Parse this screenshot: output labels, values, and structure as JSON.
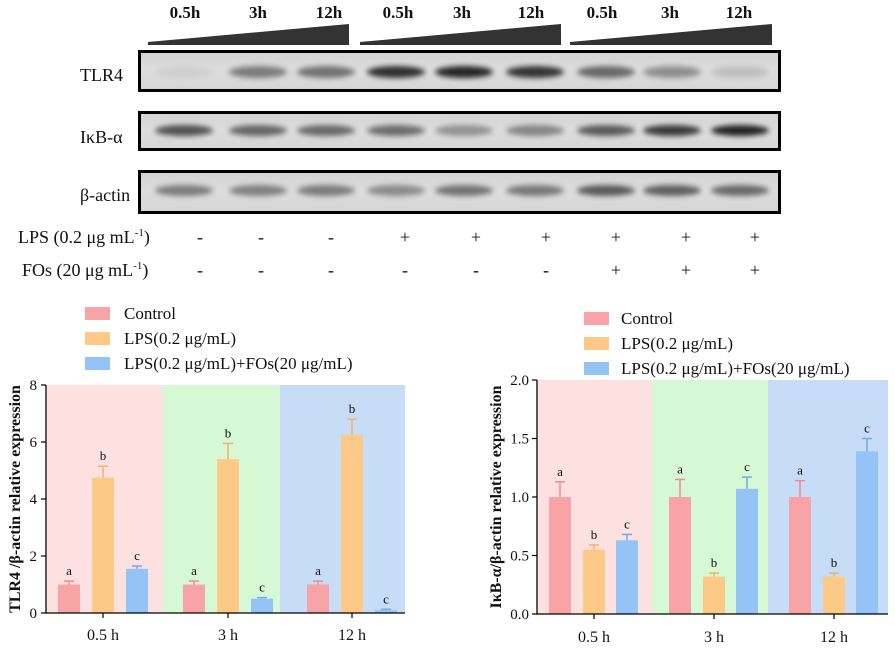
{
  "blot": {
    "time_labels": [
      "0.5h",
      "3h",
      "12h",
      "0.5h",
      "3h",
      "12h",
      "0.5h",
      "3h",
      "12h"
    ],
    "rows": [
      {
        "label": "TLR4",
        "intensity": [
          0.06,
          0.5,
          0.55,
          0.9,
          0.95,
          0.88,
          0.6,
          0.4,
          0.15
        ]
      },
      {
        "label": "IκB-α",
        "intensity": [
          0.72,
          0.62,
          0.6,
          0.58,
          0.38,
          0.45,
          0.68,
          0.85,
          0.97
        ]
      },
      {
        "label": "β-actin",
        "intensity": [
          0.5,
          0.48,
          0.5,
          0.42,
          0.55,
          0.52,
          0.68,
          0.65,
          0.6
        ]
      }
    ],
    "treatments": [
      {
        "label": "LPS (0.2 μg mL",
        "label_sup": "-1",
        "label_end": ")",
        "values": [
          "-",
          "-",
          "-",
          "+",
          "+",
          "+",
          "+",
          "+",
          "+"
        ]
      },
      {
        "label": "FOs (20 μg mL",
        "label_sup": "-1",
        "label_end": ")",
        "values": [
          "-",
          "-",
          "-",
          "-",
          "-",
          "-",
          "+",
          "+",
          "+"
        ]
      }
    ]
  },
  "colors": {
    "series": [
      "#f8a3a6",
      "#fdc987",
      "#93c4f5"
    ],
    "error_bars": [
      "#f08a90",
      "#f5b365",
      "#6faaea"
    ],
    "regions": [
      "#fde1e0",
      "#d7f8d4",
      "#c7dcf6"
    ],
    "band": "#1c1c1c",
    "wedge": "#333333"
  },
  "chart_data": [
    {
      "type": "bar",
      "categories": [
        "0.5 h",
        "3 h",
        "12 h"
      ],
      "xlabel": "",
      "ylabel": "TLR4 /β-actin relative expression",
      "ylim": [
        0,
        8
      ],
      "yticks": [
        0,
        2,
        4,
        6,
        8
      ],
      "ytick_labels": [
        "0",
        "2",
        "4",
        "6",
        "8"
      ],
      "grid": false,
      "legend": "top-left",
      "series": [
        {
          "name": "Control",
          "values": [
            1.0,
            1.0,
            1.0
          ],
          "errors": [
            0.12,
            0.12,
            0.12
          ],
          "letters": [
            "a",
            "a",
            "a"
          ]
        },
        {
          "name": "LPS(0.2 μg/mL)",
          "values": [
            4.75,
            5.4,
            6.25
          ],
          "errors": [
            0.4,
            0.55,
            0.55
          ],
          "letters": [
            "b",
            "b",
            "b"
          ]
        },
        {
          "name": "LPS(0.2 μg/mL)+FOs(20 μg/mL)",
          "values": [
            1.55,
            0.5,
            0.1
          ],
          "errors": [
            0.1,
            0.04,
            0.03
          ],
          "letters": [
            "c",
            "c",
            "c"
          ]
        }
      ]
    },
    {
      "type": "bar",
      "categories": [
        "0.5 h",
        "3 h",
        "12 h"
      ],
      "xlabel": "",
      "ylabel": "IκB-α/β-actin relative expression",
      "ylim": [
        0,
        2
      ],
      "yticks": [
        0,
        0.5,
        1.0,
        1.5,
        2.0
      ],
      "ytick_labels": [
        "0.0",
        "0.5",
        "1.0",
        "1.5",
        "2.0"
      ],
      "grid": false,
      "legend": "top-left",
      "series": [
        {
          "name": "Control",
          "values": [
            1.0,
            1.0,
            1.0
          ],
          "errors": [
            0.13,
            0.15,
            0.14
          ],
          "letters": [
            "a",
            "a",
            "a"
          ]
        },
        {
          "name": "LPS(0.2 μg/mL)",
          "values": [
            0.55,
            0.32,
            0.32
          ],
          "errors": [
            0.04,
            0.03,
            0.03
          ],
          "letters": [
            "b",
            "b",
            "b"
          ]
        },
        {
          "name": "LPS(0.2 μg/mL)+FOs(20 μg/mL)",
          "values": [
            0.63,
            1.07,
            1.39
          ],
          "errors": [
            0.05,
            0.1,
            0.11
          ],
          "letters": [
            "c",
            "c",
            "c"
          ]
        }
      ]
    }
  ]
}
